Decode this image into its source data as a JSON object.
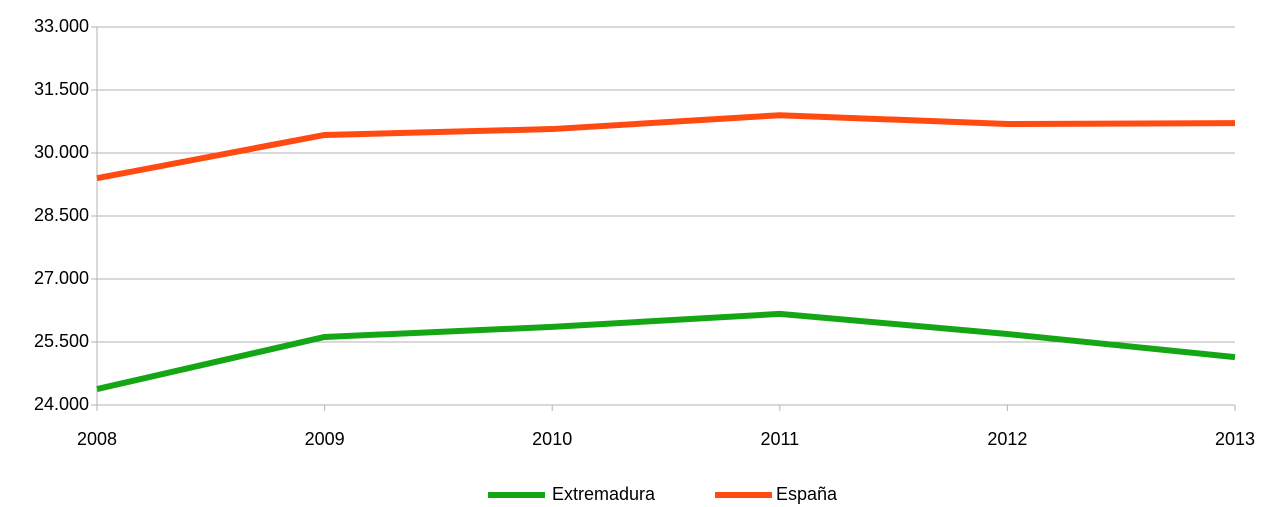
{
  "chart_data": {
    "type": "line",
    "categories": [
      "2008",
      "2009",
      "2010",
      "2011",
      "2012",
      "2013"
    ],
    "series": [
      {
        "name": "Extremadura",
        "color": "#14a614",
        "values": [
          24380,
          25620,
          25860,
          26170,
          25690,
          25140
        ]
      },
      {
        "name": "España",
        "color": "#ff4a12",
        "values": [
          29400,
          30430,
          30570,
          30900,
          30690,
          30710
        ]
      }
    ],
    "ylim": [
      24000,
      33000
    ],
    "yticks": [
      {
        "value": 24000,
        "label": "24.000"
      },
      {
        "value": 25500,
        "label": "25.500"
      },
      {
        "value": 27000,
        "label": "27.000"
      },
      {
        "value": 28500,
        "label": "28.500"
      },
      {
        "value": 30000,
        "label": "30.000"
      },
      {
        "value": 31500,
        "label": "31.500"
      },
      {
        "value": 33000,
        "label": "33.000"
      }
    ],
    "grid": true,
    "legend": "bottom"
  }
}
